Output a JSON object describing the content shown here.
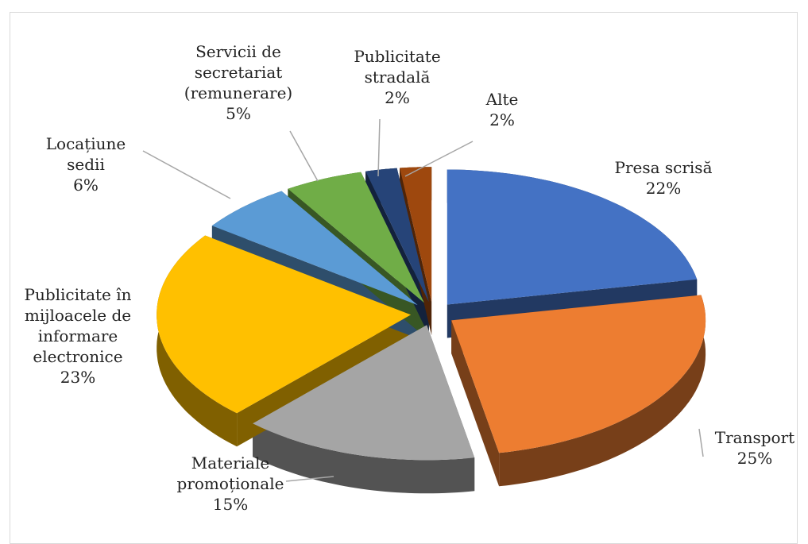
{
  "chart_data": {
    "type": "pie",
    "categories": [
      "Presa scrisă",
      "Transport",
      "Materiale promoționale",
      "Publicitate în mijloacele de informare electronice",
      "Locațiune sedii",
      "Servicii de secretariat (remunerare)",
      "Publicitate stradală",
      "Alte"
    ],
    "values": [
      22,
      25,
      15,
      23,
      6,
      5,
      2,
      2
    ],
    "value_labels": [
      "22%",
      "25%",
      "15%",
      "23%",
      "6%",
      "5%",
      "2%",
      "2%"
    ],
    "colors": [
      "#4472c4",
      "#ed7d31",
      "#a5a5a5",
      "#ffc000",
      "#5b9bd5",
      "#70ad47",
      "#264478",
      "#9e480e"
    ]
  }
}
